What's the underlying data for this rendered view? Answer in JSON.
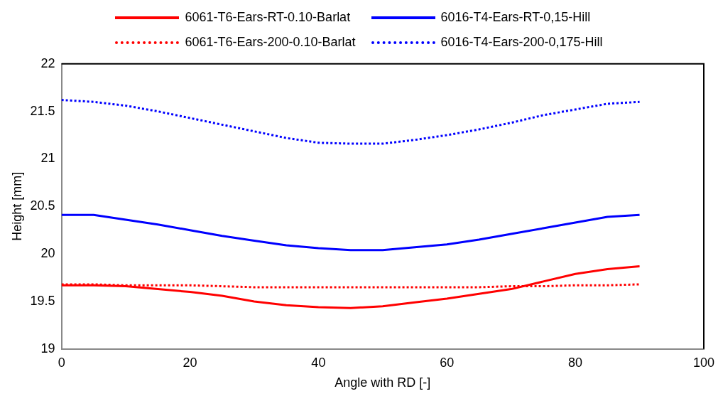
{
  "chart_data": {
    "type": "line",
    "xlabel": "Angle with RD [-]",
    "ylabel": "Height [mm]",
    "x": [
      0,
      5,
      10,
      15,
      20,
      25,
      30,
      35,
      40,
      45,
      50,
      55,
      60,
      65,
      70,
      75,
      80,
      85,
      90
    ],
    "xlim": [
      0,
      100
    ],
    "xticks": [
      0,
      20,
      40,
      60,
      80,
      100
    ],
    "ylim": [
      19,
      22
    ],
    "yticks": [
      19,
      {
        "value": 19.5,
        "label": "19.5"
      },
      20,
      {
        "value": 20.5,
        "label": "20.5"
      },
      21,
      {
        "value": 21.5,
        "label": "21.5"
      },
      22
    ],
    "grid": false,
    "legend": "top",
    "marker": "none",
    "series": [
      {
        "name": "6061-T6-Ears-RT-0.10-Barlat",
        "color": "#ff0000",
        "line_style": "solid",
        "values": [
          19.67,
          19.67,
          19.66,
          19.63,
          19.6,
          19.56,
          19.5,
          19.46,
          19.44,
          19.43,
          19.45,
          19.49,
          19.53,
          19.58,
          19.63,
          19.71,
          19.79,
          19.84,
          19.87
        ]
      },
      {
        "name": "6016-T4-Ears-RT-0,15-Hill",
        "color": "#0000ff",
        "line_style": "solid",
        "values": [
          20.41,
          20.41,
          20.36,
          20.31,
          20.25,
          20.19,
          20.14,
          20.09,
          20.06,
          20.04,
          20.04,
          20.07,
          20.1,
          20.15,
          20.21,
          20.27,
          20.33,
          20.39,
          20.41
        ]
      },
      {
        "name": "6061-T6-Ears-200-0.10-Barlat",
        "color": "#ff0000",
        "line_style": "dotted",
        "values": [
          19.68,
          19.68,
          19.67,
          19.67,
          19.67,
          19.66,
          19.65,
          19.65,
          19.65,
          19.65,
          19.65,
          19.65,
          19.65,
          19.65,
          19.66,
          19.66,
          19.67,
          19.67,
          19.68
        ]
      },
      {
        "name": "6016-T4-Ears-200-0,175-Hill",
        "color": "#0000ff",
        "line_style": "dotted",
        "values": [
          21.62,
          21.6,
          21.56,
          21.5,
          21.43,
          21.36,
          21.29,
          21.22,
          21.17,
          21.16,
          21.16,
          21.2,
          21.25,
          21.31,
          21.38,
          21.46,
          21.52,
          21.58,
          21.6
        ]
      }
    ]
  }
}
